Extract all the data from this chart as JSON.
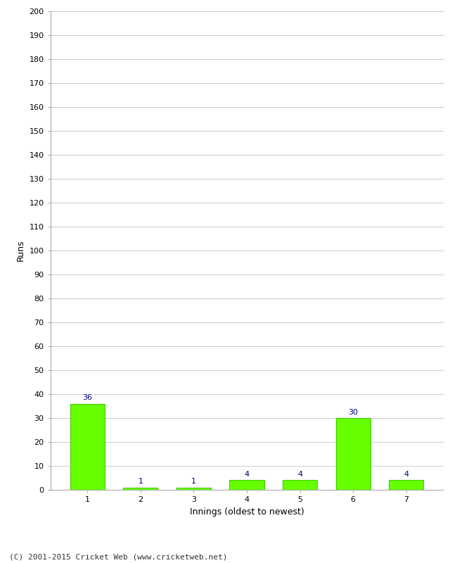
{
  "innings": [
    1,
    2,
    3,
    4,
    5,
    6,
    7
  ],
  "runs": [
    36,
    1,
    1,
    4,
    4,
    30,
    4
  ],
  "bar_color": "#66ff00",
  "bar_edge_color": "#44cc00",
  "label_color": "#000080",
  "xlabel": "Innings (oldest to newest)",
  "ylabel": "Runs",
  "ylim": [
    0,
    200
  ],
  "yticks": [
    0,
    10,
    20,
    30,
    40,
    50,
    60,
    70,
    80,
    90,
    100,
    110,
    120,
    130,
    140,
    150,
    160,
    170,
    180,
    190,
    200
  ],
  "background_color": "#ffffff",
  "grid_color": "#cccccc",
  "footer": "(C) 2001-2015 Cricket Web (www.cricketweb.net)",
  "label_fontsize": 8,
  "tick_fontsize": 8,
  "axis_label_fontsize": 9,
  "footer_fontsize": 8,
  "bar_width": 0.65
}
